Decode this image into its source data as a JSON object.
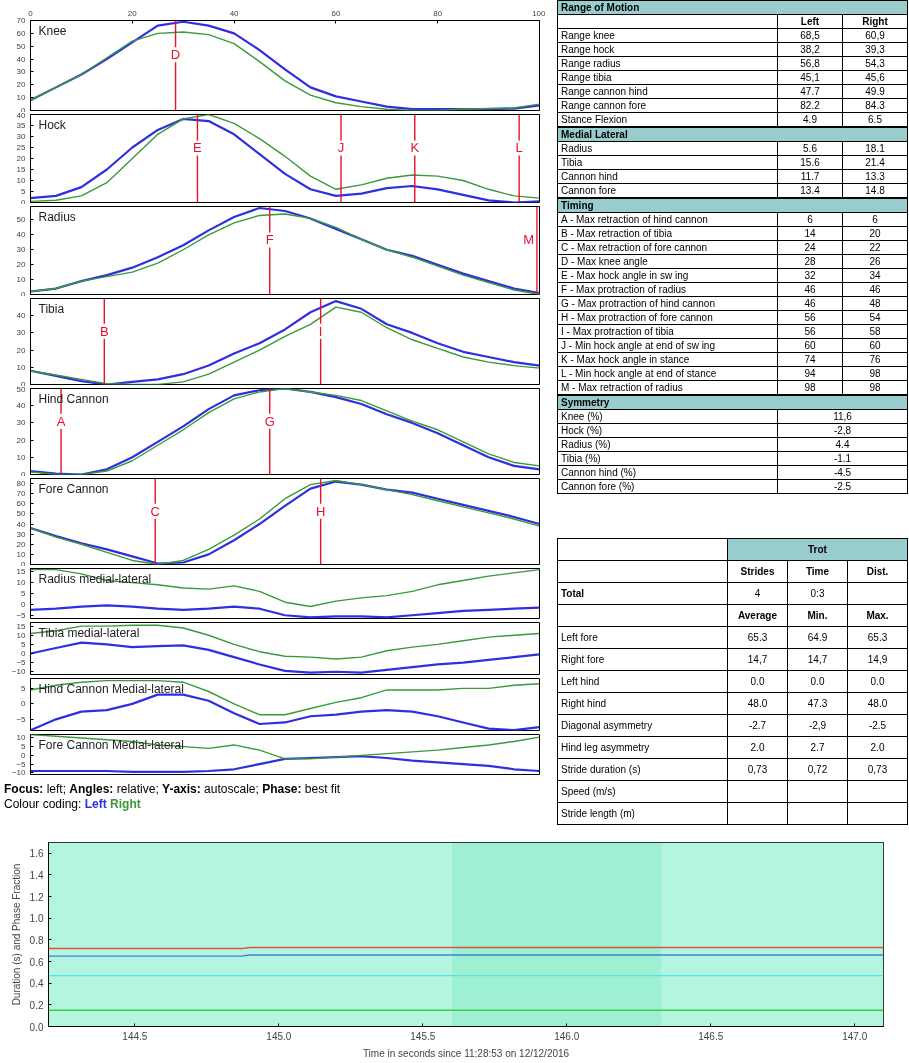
{
  "chart_data": [
    {
      "type": "line",
      "title": "Knee",
      "x": [
        0,
        5,
        10,
        15,
        20,
        25,
        30,
        35,
        40,
        45,
        50,
        55,
        60,
        65,
        70,
        75,
        80,
        85,
        90,
        95,
        100
      ],
      "xlim": [
        0,
        100
      ],
      "xticks": [
        0,
        20,
        40,
        60,
        80,
        100
      ],
      "ylim": [
        0,
        70
      ],
      "yticks": [
        0,
        10,
        20,
        30,
        40,
        50,
        60,
        70
      ],
      "series": [
        {
          "color": "#2f2fe0",
          "values": [
            8,
            18,
            28,
            40,
            53,
            66,
            69,
            66,
            60,
            47,
            32,
            18,
            11,
            7,
            3,
            1,
            1,
            1,
            1,
            1.5,
            4
          ]
        },
        {
          "color": "#3a9a3a",
          "values": [
            8,
            18,
            28,
            41,
            54,
            60,
            61,
            59,
            52,
            38,
            23,
            12,
            6,
            3,
            1,
            0,
            0,
            1,
            1.5,
            2,
            5
          ]
        }
      ],
      "ref_lines": [
        {
          "axis": "x",
          "value": 28.5,
          "label": "D",
          "color": "#e8102a"
        }
      ]
    },
    {
      "type": "line",
      "title": "Hock",
      "x": [
        0,
        5,
        10,
        15,
        20,
        25,
        30,
        35,
        40,
        45,
        50,
        55,
        60,
        65,
        70,
        75,
        80,
        85,
        90,
        95,
        100
      ],
      "xlim": [
        0,
        100
      ],
      "ylim": [
        0,
        40
      ],
      "yticks": [
        0,
        5,
        10,
        15,
        20,
        25,
        30,
        35,
        40
      ],
      "tick_labels": "y",
      "series": [
        {
          "color": "#2f2fe0",
          "values": [
            2,
            3,
            7,
            15,
            25,
            33,
            38,
            37,
            31,
            22,
            13,
            6,
            3,
            4,
            6.5,
            7.5,
            6,
            3.5,
            1,
            0,
            0.5
          ]
        },
        {
          "color": "#3a9a3a",
          "values": [
            0.5,
            1,
            3,
            9,
            20,
            31,
            38,
            40,
            36,
            29,
            21,
            12,
            6,
            8,
            11,
            12.5,
            12,
            10,
            6,
            3,
            2
          ]
        }
      ],
      "ref_lines": [
        {
          "axis": "x",
          "value": 32.8,
          "label": "E",
          "color": "#e8102a"
        },
        {
          "axis": "x",
          "value": 61,
          "label": "J",
          "color": "#e8102a"
        },
        {
          "axis": "x",
          "value": 75.5,
          "label": "K",
          "color": "#e8102a"
        },
        {
          "axis": "x",
          "value": 96,
          "label": "L",
          "color": "#e8102a"
        }
      ]
    },
    {
      "type": "line",
      "title": "Radius",
      "x": [
        0,
        5,
        10,
        15,
        20,
        25,
        30,
        35,
        40,
        45,
        50,
        55,
        60,
        65,
        70,
        75,
        80,
        85,
        90,
        95,
        100
      ],
      "xlim": [
        0,
        100
      ],
      "ylim": [
        0,
        59
      ],
      "yticks": [
        0,
        10,
        20,
        30,
        40,
        50
      ],
      "tick_labels": "y",
      "series": [
        {
          "color": "#2f2fe0",
          "values": [
            2,
            4,
            9,
            13,
            18,
            25,
            33,
            43,
            52,
            58,
            56,
            51,
            44,
            37,
            30,
            26,
            20,
            14,
            9,
            4,
            1
          ]
        },
        {
          "color": "#3a9a3a",
          "values": [
            2,
            4,
            9,
            12,
            15,
            21,
            30,
            40,
            48,
            53,
            54,
            51,
            45,
            37,
            30,
            25,
            19,
            13,
            8,
            3,
            0
          ]
        }
      ],
      "ref_lines": [
        {
          "axis": "x",
          "value": 47,
          "label": "F",
          "color": "#e8102a"
        },
        {
          "axis": "x",
          "value": 99.5,
          "label": "M",
          "color": "#e8102a"
        }
      ]
    },
    {
      "type": "line",
      "title": "Tibia",
      "x": [
        0,
        5,
        10,
        15,
        20,
        25,
        30,
        35,
        40,
        45,
        50,
        55,
        60,
        65,
        70,
        75,
        80,
        85,
        90,
        95,
        100
      ],
      "xlim": [
        0,
        100
      ],
      "ylim": [
        0,
        50
      ],
      "yticks": [
        0,
        10,
        20,
        30,
        40
      ],
      "tick_labels": "y",
      "series": [
        {
          "color": "#2f2fe0",
          "values": [
            8,
            5,
            2,
            0,
            1.5,
            3,
            6,
            11,
            18,
            24,
            32,
            42,
            48.5,
            44,
            35,
            30,
            24,
            19,
            16,
            13,
            11
          ]
        },
        {
          "color": "#3a9a3a",
          "values": [
            8,
            5.5,
            3,
            0.5,
            0,
            0,
            1.5,
            6,
            13,
            20,
            28,
            35,
            45,
            42,
            33,
            26,
            21,
            16,
            13,
            11,
            9.5
          ]
        }
      ],
      "ref_lines": [
        {
          "axis": "x",
          "value": 14.5,
          "label": "B",
          "color": "#e8102a"
        },
        {
          "axis": "x",
          "value": 57,
          "label": "I",
          "color": "#e8102a"
        }
      ]
    },
    {
      "type": "line",
      "title": "Hind Cannon",
      "x": [
        0,
        5,
        10,
        15,
        20,
        25,
        30,
        35,
        40,
        45,
        50,
        55,
        60,
        65,
        70,
        75,
        80,
        85,
        90,
        95,
        100
      ],
      "xlim": [
        0,
        100
      ],
      "ylim": [
        0,
        50
      ],
      "yticks": [
        0,
        10,
        20,
        30,
        40,
        50
      ],
      "tick_labels": "y",
      "series": [
        {
          "color": "#2f2fe0",
          "values": [
            2,
            0.5,
            0,
            3,
            10,
            19,
            28,
            38,
            46,
            49,
            50,
            48,
            45,
            41,
            35,
            30,
            24,
            17,
            10,
            5,
            3
          ]
        },
        {
          "color": "#3a9a3a",
          "values": [
            1.5,
            0,
            0,
            2,
            8,
            17,
            26,
            36,
            44,
            48,
            50,
            48,
            46,
            43,
            37,
            31,
            26,
            19,
            12,
            7,
            5
          ]
        }
      ],
      "ref_lines": [
        {
          "axis": "x",
          "value": 6,
          "label": "A",
          "color": "#e8102a"
        },
        {
          "axis": "x",
          "value": 47,
          "label": "G",
          "color": "#e8102a"
        }
      ]
    },
    {
      "type": "line",
      "title": "Fore Cannon",
      "x": [
        0,
        5,
        10,
        15,
        20,
        25,
        30,
        35,
        40,
        45,
        50,
        55,
        60,
        65,
        70,
        75,
        80,
        85,
        90,
        95,
        100
      ],
      "xlim": [
        0,
        100
      ],
      "ylim": [
        0,
        85
      ],
      "yticks": [
        0,
        10,
        20,
        30,
        40,
        50,
        60,
        70,
        80
      ],
      "tick_labels": "y",
      "series": [
        {
          "color": "#2f2fe0",
          "values": [
            36,
            28,
            21,
            15,
            8,
            1,
            2,
            10,
            24,
            40,
            58,
            75,
            82,
            79,
            74,
            71,
            65,
            59,
            53,
            47,
            40
          ]
        },
        {
          "color": "#3a9a3a",
          "values": [
            36,
            27,
            20,
            12,
            4,
            0,
            4,
            15,
            29,
            45,
            65,
            79,
            83,
            79,
            74,
            69,
            63,
            57,
            51,
            45,
            38
          ]
        }
      ],
      "ref_lines": [
        {
          "axis": "x",
          "value": 24.5,
          "label": "C",
          "color": "#e8102a"
        },
        {
          "axis": "x",
          "value": 57,
          "label": "H",
          "color": "#e8102a"
        }
      ]
    },
    {
      "type": "line",
      "title": "Radius medial-lateral",
      "x": [
        0,
        5,
        10,
        15,
        20,
        25,
        30,
        35,
        40,
        45,
        50,
        55,
        60,
        65,
        70,
        75,
        80,
        85,
        90,
        95,
        100
      ],
      "xlim": [
        0,
        100
      ],
      "ylim": [
        -6.5,
        16.5
      ],
      "yticks": [
        -5,
        0,
        5,
        10,
        15
      ],
      "tick_labels": "y",
      "series": [
        {
          "color": "#2f2fe0",
          "values": [
            -2.5,
            -2,
            -1,
            -0.5,
            -1,
            -2,
            -2.5,
            -2,
            -1,
            -2,
            -5,
            -6,
            -5.5,
            -5.5,
            -6,
            -5,
            -4,
            -3,
            -2.5,
            -2,
            -1.5
          ]
        },
        {
          "color": "#3a9a3a",
          "values": [
            16,
            16,
            14,
            11,
            10,
            9,
            7.5,
            7,
            8.5,
            6,
            1,
            -1,
            1.5,
            3,
            4,
            6,
            9,
            11,
            13,
            14.5,
            16
          ]
        }
      ]
    },
    {
      "type": "line",
      "title": "Tibia medial-lateral",
      "x": [
        0,
        5,
        10,
        15,
        20,
        25,
        30,
        35,
        40,
        45,
        50,
        55,
        60,
        65,
        70,
        75,
        80,
        85,
        90,
        95,
        100
      ],
      "xlim": [
        0,
        100
      ],
      "ylim": [
        -11.5,
        17
      ],
      "yticks": [
        -10,
        -5,
        0,
        5,
        10,
        15
      ],
      "tick_labels": "y",
      "series": [
        {
          "color": "#2f2fe0",
          "values": [
            0,
            3,
            6,
            5,
            3.5,
            4,
            4.5,
            2,
            -2,
            -6,
            -9.5,
            -10.5,
            -10,
            -10.5,
            -9,
            -7.5,
            -6,
            -5,
            -3.5,
            -2,
            -0.5
          ]
        },
        {
          "color": "#3a9a3a",
          "values": [
            11,
            12.5,
            15,
            15,
            15.5,
            15.5,
            14,
            10,
            5,
            1,
            -1.5,
            -2,
            -3,
            -2,
            1.5,
            3.5,
            5,
            7,
            9,
            10,
            11
          ]
        }
      ]
    },
    {
      "type": "line",
      "title": "Hind Cannon Medial-lateral",
      "x": [
        0,
        5,
        10,
        15,
        20,
        25,
        30,
        35,
        40,
        45,
        50,
        55,
        60,
        65,
        70,
        75,
        80,
        85,
        90,
        95,
        100
      ],
      "xlim": [
        0,
        100
      ],
      "ylim": [
        -8.6,
        8.2
      ],
      "yticks": [
        -5,
        0,
        5
      ],
      "tick_labels": "y",
      "series": [
        {
          "color": "#2f2fe0",
          "values": [
            -8.5,
            -5,
            -2.5,
            -2,
            0,
            3,
            3,
            1,
            -3,
            -6.5,
            -6,
            -4,
            -3.5,
            -2.5,
            -2,
            -2.5,
            -4,
            -6,
            -8,
            -8.5,
            -7.5
          ]
        },
        {
          "color": "#3a9a3a",
          "values": [
            4.5,
            6,
            7,
            7.5,
            7.5,
            7.5,
            7,
            4,
            0,
            -3.5,
            -3.5,
            -1.5,
            0.5,
            2,
            4.5,
            4.5,
            4.5,
            5,
            5,
            6,
            6.5
          ]
        }
      ]
    },
    {
      "type": "line",
      "title": "Fore Cannon Medial-lateral",
      "x": [
        0,
        5,
        10,
        15,
        20,
        25,
        30,
        35,
        40,
        45,
        50,
        55,
        60,
        65,
        70,
        75,
        80,
        85,
        90,
        95,
        100
      ],
      "xlim": [
        0,
        100
      ],
      "ylim": [
        -11,
        12
      ],
      "yticks": [
        -10,
        -5,
        0,
        5,
        10
      ],
      "tick_labels": "y",
      "series": [
        {
          "color": "#2f2fe0",
          "values": [
            -9,
            -9,
            -9,
            -9,
            -9.5,
            -9.5,
            -9.5,
            -9,
            -8,
            -5,
            -2,
            -1.5,
            -1,
            -0.5,
            -1.5,
            -3,
            -4,
            -5,
            -6,
            -8,
            -9
          ]
        },
        {
          "color": "#3a9a3a",
          "values": [
            12,
            11,
            10,
            9,
            8,
            6,
            5,
            4,
            6,
            3,
            -2,
            -2,
            -1,
            0,
            1,
            2,
            3,
            4.5,
            6,
            8,
            10.5
          ]
        }
      ]
    },
    {
      "type": "other",
      "title": "Range of Motion",
      "categories": [
        "Left",
        "Right"
      ],
      "y_categories": [
        "Range knee",
        "Range hock",
        "Range radius",
        "Range tibia",
        "Range cannon hind",
        "Range cannon fore",
        "Stance Flexion"
      ],
      "cell_labels": [
        [
          "68,5",
          "60,9"
        ],
        [
          "38,2",
          "39,3"
        ],
        [
          "56,8",
          "54,3"
        ],
        [
          "45,1",
          "45,6"
        ],
        [
          "47.7",
          "49.9"
        ],
        [
          "82.2",
          "84.3"
        ],
        [
          "4.9",
          "6.5"
        ]
      ]
    },
    {
      "type": "other",
      "title": "Medial Lateral",
      "categories": [
        null,
        null
      ],
      "y_categories": [
        "Radius",
        "Tibia",
        "Cannon hind",
        "Cannon fore"
      ],
      "cell_labels": [
        [
          "5.6",
          "18.1"
        ],
        [
          "15.6",
          "21.4"
        ],
        [
          "11.7",
          "13.3"
        ],
        [
          "13.4",
          "14.8"
        ]
      ]
    },
    {
      "type": "other",
      "title": "Timing",
      "categories": [
        null,
        null
      ],
      "y_categories": [
        "A - Max retraction of hind cannon",
        "B - Max retraction of tibia",
        "C - Max retraction of fore cannon",
        "D - Max knee angle",
        "E - Max hock angle in sw ing",
        "F - Max protraction of radius",
        "G - Max protraction of hind cannon",
        "H - Max protraction of fore cannon",
        "I - Max protraction of tibia",
        "J - Min hock angle at end of sw ing",
        "K - Max hock angle in stance",
        "L - Min hock angle at end of stance",
        "M - Max retraction of radius"
      ],
      "cell_labels": [
        [
          "6",
          "6"
        ],
        [
          "14",
          "20"
        ],
        [
          "24",
          "22"
        ],
        [
          "28",
          "26"
        ],
        [
          "32",
          "34"
        ],
        [
          "46",
          "46"
        ],
        [
          "46",
          "48"
        ],
        [
          "56",
          "54"
        ],
        [
          "56",
          "58"
        ],
        [
          "60",
          "60"
        ],
        [
          "74",
          "76"
        ],
        [
          "94",
          "98"
        ],
        [
          "98",
          "98"
        ]
      ]
    },
    {
      "type": "other",
      "title": "Symmetry",
      "categories": [
        null
      ],
      "y_categories": [
        "Knee (%)",
        "Hock (%)",
        "Radius (%)",
        "Tibia (%)",
        "Cannon hind (%)",
        "Cannon fore (%)"
      ],
      "cell_labels": [
        [
          "11,6"
        ],
        [
          "-2,8"
        ],
        [
          "4.4"
        ],
        [
          "-1.1"
        ],
        [
          "-4.5"
        ],
        [
          "-2.5"
        ]
      ]
    },
    {
      "type": "other",
      "title": "Trot",
      "categories": [
        "Strides",
        "Time",
        "Dist."
      ],
      "y_categories": [
        "Total",
        null,
        "Left fore",
        "Right fore",
        "Left hind",
        "Right hind",
        "Diagonal asymmetry",
        "Hind leg asymmetry",
        "Stride duration (s)",
        "Speed (m/s)",
        "Stride length (m)"
      ],
      "cell_labels": [
        [
          "4",
          "0:3",
          null
        ],
        [
          "Average",
          "Min.",
          "Max."
        ],
        [
          "65.3",
          "64.9",
          "65.3"
        ],
        [
          "14,7",
          "14,7",
          "14,9"
        ],
        [
          "0.0",
          "0.0",
          "0.0"
        ],
        [
          "48.0",
          "47.3",
          "48.0"
        ],
        [
          "-2.7",
          "-2,9",
          "-2.5"
        ],
        [
          "2.0",
          "2.7",
          "2.0"
        ],
        [
          "0,73",
          "0,72",
          "0,73"
        ],
        [
          null,
          null,
          null
        ],
        [
          null,
          null,
          null
        ]
      ]
    },
    {
      "type": "other",
      "annotations": [
        "Focus: left; Angles: relative; Y-axis: autoscale; Phase: best fit",
        "Colour coding:",
        "Left",
        "Right"
      ]
    },
    {
      "type": "line",
      "xlabel": "Time in seconds since 11:28:53 on 12/12/2016",
      "ylabel": "Duration (s) and Phase Fraction",
      "xlim": [
        144.2,
        147.1
      ],
      "xticks": [
        144.5,
        {
          "value": 145,
          "label": "145.0"
        },
        145.5,
        {
          "value": 146,
          "label": "146.0"
        },
        146.5,
        {
          "value": 147,
          "label": "147.0"
        }
      ],
      "ylim": [
        0,
        1.7
      ],
      "yticks": [
        {
          "value": 0,
          "label": "0.0"
        },
        0.2,
        0.4,
        0.6,
        0.8,
        {
          "value": 1,
          "label": "1.0"
        },
        1.2,
        1.4,
        1.6
      ],
      "series": [
        {
          "color": "#e0503c",
          "x": [
            144.2,
            144.87,
            144.9,
            147.1
          ],
          "values": [
            0.72,
            0.72,
            0.73,
            0.73
          ]
        },
        {
          "color": "#3c82d8",
          "x": [
            144.2,
            144.87,
            144.9,
            147.1
          ],
          "values": [
            0.65,
            0.65,
            0.66,
            0.66
          ]
        },
        {
          "color": "#50e6e6",
          "x": [
            144.2,
            147.1
          ],
          "values": [
            0.47,
            0.47
          ]
        },
        {
          "color": "#3cd23c",
          "x": [
            144.2,
            147.1
          ],
          "values": [
            0.15,
            0.15
          ]
        }
      ],
      "bands": [
        {
          "axis": "x",
          "from": 144.2,
          "to": 145.6,
          "color": "#b4f5df"
        },
        {
          "axis": "x",
          "from": 145.6,
          "to": 146.33,
          "color": "#9ef0d3"
        },
        {
          "axis": "x",
          "from": 146.33,
          "to": 147.1,
          "color": "#b4f5df"
        }
      ]
    }
  ]
}
